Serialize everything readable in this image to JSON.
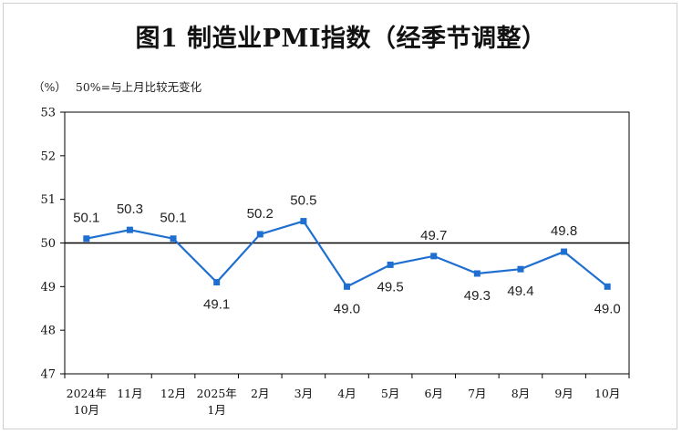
{
  "page": {
    "title": "图1  制造业PMI指数（经季节调整）"
  },
  "note": {
    "unit": "（%）",
    "text": "50%=与上月比较无变化"
  },
  "colors": {
    "line": "#1f6fd1",
    "marker": "#1f6fd1",
    "reference": "#000000",
    "axis": "#000000",
    "grid": "#d0d0d0"
  },
  "chart_data": {
    "type": "line",
    "title": "图1  制造业PMI指数（经季节调整）",
    "ylabel": "（%）",
    "xlabel": "",
    "ylim": [
      47,
      53
    ],
    "yticks": [
      47,
      48,
      49,
      50,
      51,
      52,
      53
    ],
    "reference_line": 50,
    "annotation": "50%=与上月比较无变化",
    "categories": [
      [
        "2024年",
        "10月"
      ],
      [
        "11月"
      ],
      [
        "12月"
      ],
      [
        "2025年",
        "1月"
      ],
      [
        "2月"
      ],
      [
        "3月"
      ],
      [
        "4月"
      ],
      [
        "5月"
      ],
      [
        "6月"
      ],
      [
        "7月"
      ],
      [
        "8月"
      ],
      [
        "9月"
      ],
      [
        "10月"
      ]
    ],
    "series": [
      {
        "name": "制造业PMI",
        "values": [
          50.1,
          50.3,
          50.1,
          49.1,
          50.2,
          50.5,
          49.0,
          49.5,
          49.7,
          49.3,
          49.4,
          49.8,
          49.0
        ],
        "labels": [
          "50.1",
          "50.3",
          "50.1",
          "49.1",
          "50.2",
          "50.5",
          "49.0",
          "49.5",
          "49.7",
          "49.3",
          "49.4",
          "49.8",
          "49.0"
        ],
        "label_pos": [
          "above",
          "above",
          "above",
          "below",
          "above",
          "above",
          "below",
          "below",
          "above",
          "below",
          "below",
          "above",
          "below"
        ]
      }
    ]
  }
}
